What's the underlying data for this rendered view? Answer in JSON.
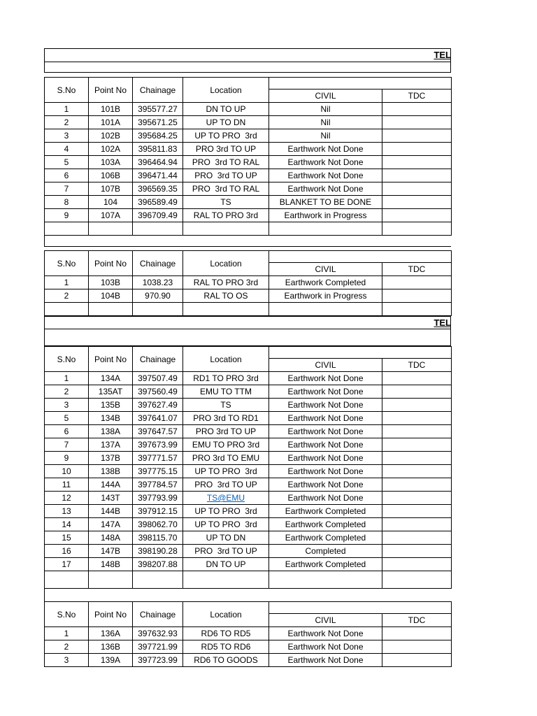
{
  "titles": {
    "tel": "TEL"
  },
  "colors": {
    "border": "#000000",
    "text": "#000000",
    "link": "#0563c1"
  },
  "header": {
    "sno": "S.No",
    "point_no": "Point No",
    "chainage": "Chainage",
    "location": "Location",
    "civil": "CIVIL",
    "tdc": "TDC"
  },
  "tables": [
    {
      "name": "section-1",
      "rows": [
        {
          "cells": [
            "1",
            "101B",
            "395577.27",
            "DN TO UP",
            "Nil",
            ""
          ]
        },
        {
          "cells": [
            "2",
            "101A",
            "395671.25",
            "UP TO DN",
            "Nil",
            ""
          ]
        },
        {
          "cells": [
            "3",
            "102B",
            "395684.25",
            "UP TO PRO  3rd",
            "Nil",
            ""
          ]
        },
        {
          "cells": [
            "4",
            "102A",
            "395811.83",
            "PRO 3rd TO UP",
            "Earthwork Not Done",
            ""
          ]
        },
        {
          "cells": [
            "5",
            "103A",
            "396464.94",
            "PRO  3rd TO RAL",
            "Earthwork Not Done",
            ""
          ]
        },
        {
          "cells": [
            "6",
            "106B",
            "396471.44",
            "PRO  3rd TO UP",
            "Earthwork Not Done",
            ""
          ]
        },
        {
          "cells": [
            "7",
            "107B",
            "396569.35",
            "PRO  3rd TO RAL",
            "Earthwork Not Done",
            ""
          ]
        },
        {
          "cells": [
            "8",
            "104",
            "396589.49",
            "TS",
            "BLANKET TO BE DONE",
            ""
          ]
        },
        {
          "cells": [
            "9",
            "107A",
            "396709.49",
            "RAL TO PRO 3rd",
            "Earthwork in Progress",
            ""
          ]
        }
      ]
    },
    {
      "name": "section-2",
      "rows": [
        {
          "cells": [
            "1",
            "103B",
            "1038.23",
            "RAL TO PRO 3rd",
            "Earthwork Completed",
            ""
          ]
        },
        {
          "cells": [
            "2",
            "104B",
            "970.90",
            "RAL TO OS",
            "Earthwork in Progress",
            ""
          ]
        }
      ]
    },
    {
      "name": "section-3",
      "rows": [
        {
          "cells": [
            "1",
            "134A",
            "397507.49",
            "RD1 TO PRO 3rd",
            "Earthwork Not Done",
            ""
          ]
        },
        {
          "cells": [
            "2",
            "135AT",
            "397560.49",
            "EMU TO TTM",
            "Earthwork Not Done",
            ""
          ]
        },
        {
          "cells": [
            "3",
            "135B",
            "397627.49",
            "TS",
            "Earthwork Not Done",
            ""
          ]
        },
        {
          "cells": [
            "5",
            "134B",
            "397641.07",
            "PRO 3rd TO RD1",
            "Earthwork Not Done",
            ""
          ]
        },
        {
          "cells": [
            "6",
            "138A",
            "397647.57",
            "PRO 3rd TO UP",
            "Earthwork Not Done",
            ""
          ]
        },
        {
          "cells": [
            "7",
            "137A",
            "397673.99",
            "EMU TO PRO 3rd",
            "Earthwork Not Done",
            ""
          ]
        },
        {
          "cells": [
            "9",
            "137B",
            "397771.57",
            "PRO 3rd TO EMU",
            "Earthwork Not Done",
            ""
          ]
        },
        {
          "cells": [
            "10",
            "138B",
            "397775.15",
            "UP TO PRO  3rd",
            "Earthwork Not Done",
            ""
          ]
        },
        {
          "cells": [
            "11",
            "144A",
            "397784.57",
            "PRO  3rd TO UP",
            "Earthwork Not Done",
            ""
          ]
        },
        {
          "cells": [
            "12",
            "143T",
            "397793.99",
            "TS@EMU",
            "Earthwork Not Done",
            ""
          ],
          "location_link": true
        },
        {
          "cells": [
            "13",
            "144B",
            "397912.15",
            "UP TO PRO  3rd",
            "Earthwork Completed",
            ""
          ]
        },
        {
          "cells": [
            "14",
            "147A",
            "398062.70",
            "UP TO PRO  3rd",
            "Earthwork Completed",
            ""
          ]
        },
        {
          "cells": [
            "15",
            "148A",
            "398115.70",
            "UP TO DN",
            "Earthwork Completed",
            ""
          ]
        },
        {
          "cells": [
            "16",
            "147B",
            "398190.28",
            "PRO  3rd TO UP",
            "Completed",
            ""
          ]
        },
        {
          "cells": [
            "17",
            "148B",
            "398207.88",
            "DN TO UP",
            "Earthwork Completed",
            ""
          ]
        }
      ]
    },
    {
      "name": "section-4",
      "rows": [
        {
          "cells": [
            "1",
            "136A",
            "397632.93",
            "RD6 TO RD5",
            "Earthwork Not Done",
            ""
          ]
        },
        {
          "cells": [
            "2",
            "136B",
            "397721.99",
            "RD5 TO RD6",
            "Earthwork Not Done",
            ""
          ]
        },
        {
          "cells": [
            "3",
            "139A",
            "397723.99",
            "RD6 TO GOODS",
            "Earthwork Not Done",
            ""
          ]
        }
      ]
    }
  ]
}
